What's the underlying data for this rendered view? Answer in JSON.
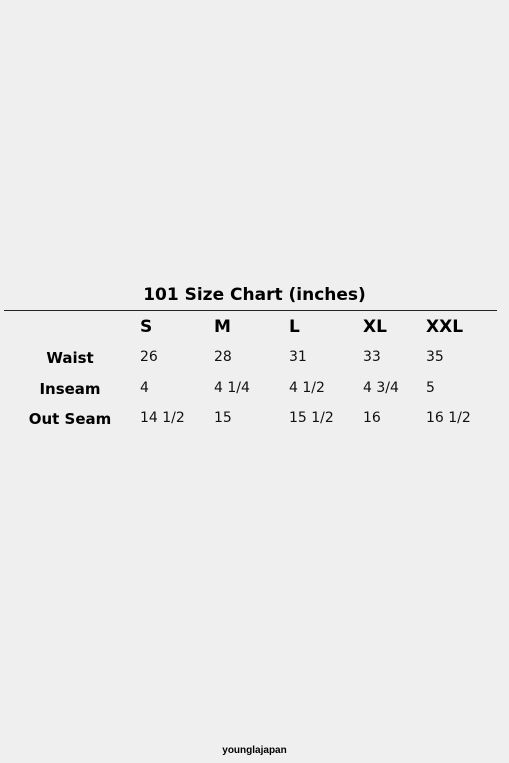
{
  "chart_data": {
    "type": "table",
    "title": "101 Size Chart (inches)",
    "columns": [
      "S",
      "M",
      "L",
      "XL",
      "XXL"
    ],
    "rows": [
      {
        "label": "Waist",
        "values": [
          "26",
          "28",
          "31",
          "33",
          "35"
        ]
      },
      {
        "label": "Inseam",
        "values": [
          "4",
          "4 1/4",
          "4 1/2",
          "4 3/4",
          "5"
        ]
      },
      {
        "label": "Out Seam",
        "values": [
          "14 1/2",
          "15",
          "15 1/2",
          "16",
          "16 1/2"
        ]
      }
    ]
  },
  "footer": {
    "brand": "younglajapan"
  }
}
